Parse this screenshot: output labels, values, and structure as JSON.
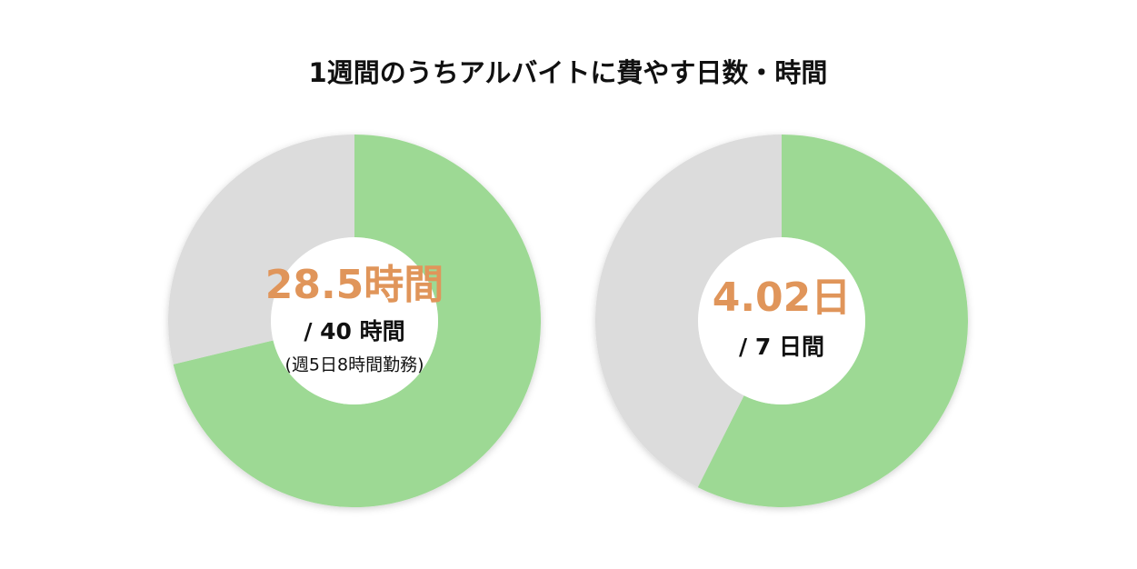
{
  "title": "1週間のうちアルバイトに費やす日数・時間",
  "chart_data": [
    {
      "type": "donut",
      "values": [
        28.5,
        11.5
      ],
      "colors": [
        "#9dd994",
        "#dcdcdc"
      ],
      "center_label": "28.5時間",
      "total_label": "/ 40 時間",
      "note": "(週5日8時間勤務)"
    },
    {
      "type": "donut",
      "values": [
        4.02,
        2.98
      ],
      "colors": [
        "#9dd994",
        "#dcdcdc"
      ],
      "center_label": "4.02日",
      "total_label": "/ 7 日間"
    }
  ]
}
